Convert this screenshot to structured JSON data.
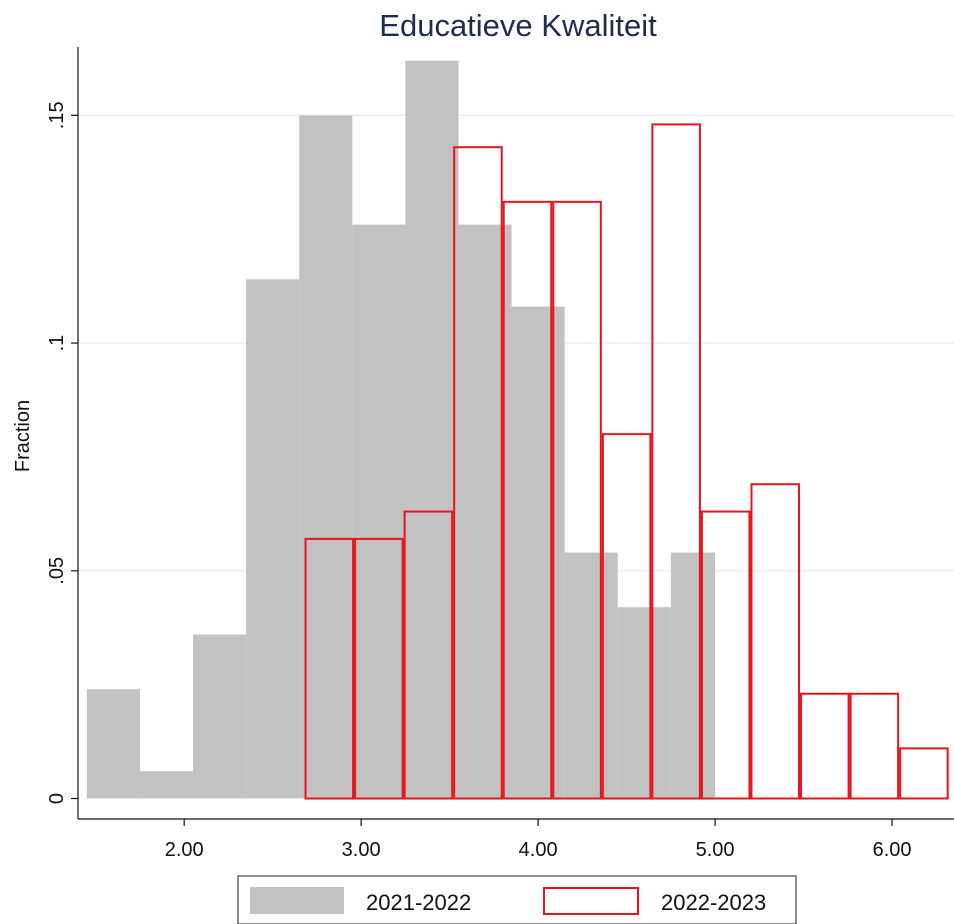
{
  "chart_data": {
    "type": "histogram",
    "title": "Educatieve Kwaliteit",
    "ylabel": "Fraction",
    "xlabel": "",
    "xlim": [
      1.4,
      6.35
    ],
    "ylim": [
      -0.0045,
      0.165
    ],
    "xticks": [
      "2.00",
      "3.00",
      "4.00",
      "5.00",
      "6.00"
    ],
    "xtick_values": [
      2,
      3,
      4,
      5,
      6
    ],
    "yticks": [
      "0",
      ".05",
      ".1",
      ".15"
    ],
    "ytick_values": [
      0,
      0.05,
      0.1,
      0.15
    ],
    "grid": true,
    "legend_position": "bottom",
    "series": [
      {
        "name": "2021-2022",
        "style": "filled",
        "fill_color": "#c2c2c2",
        "bin_edges": [
          1.45,
          1.75,
          2.05,
          2.35,
          2.65,
          2.95,
          3.25,
          3.55,
          3.85,
          4.15,
          4.45,
          4.75,
          5.0
        ],
        "values": [
          0.024,
          0.006,
          0.036,
          0.114,
          0.15,
          0.126,
          0.162,
          0.126,
          0.108,
          0.054,
          0.042,
          0.054
        ]
      },
      {
        "name": "2022-2023",
        "style": "outline",
        "line_color": "#e8141c",
        "bin_edges": [
          2.68,
          2.96,
          3.24,
          3.52,
          3.8,
          4.08,
          4.36,
          4.64,
          4.92,
          5.2,
          5.48,
          5.76,
          6.04,
          6.32
        ],
        "values": [
          0.057,
          0.057,
          0.063,
          0.143,
          0.131,
          0.131,
          0.08,
          0.148,
          0.063,
          0.069,
          0.023,
          0.023,
          0.011
        ]
      }
    ]
  }
}
